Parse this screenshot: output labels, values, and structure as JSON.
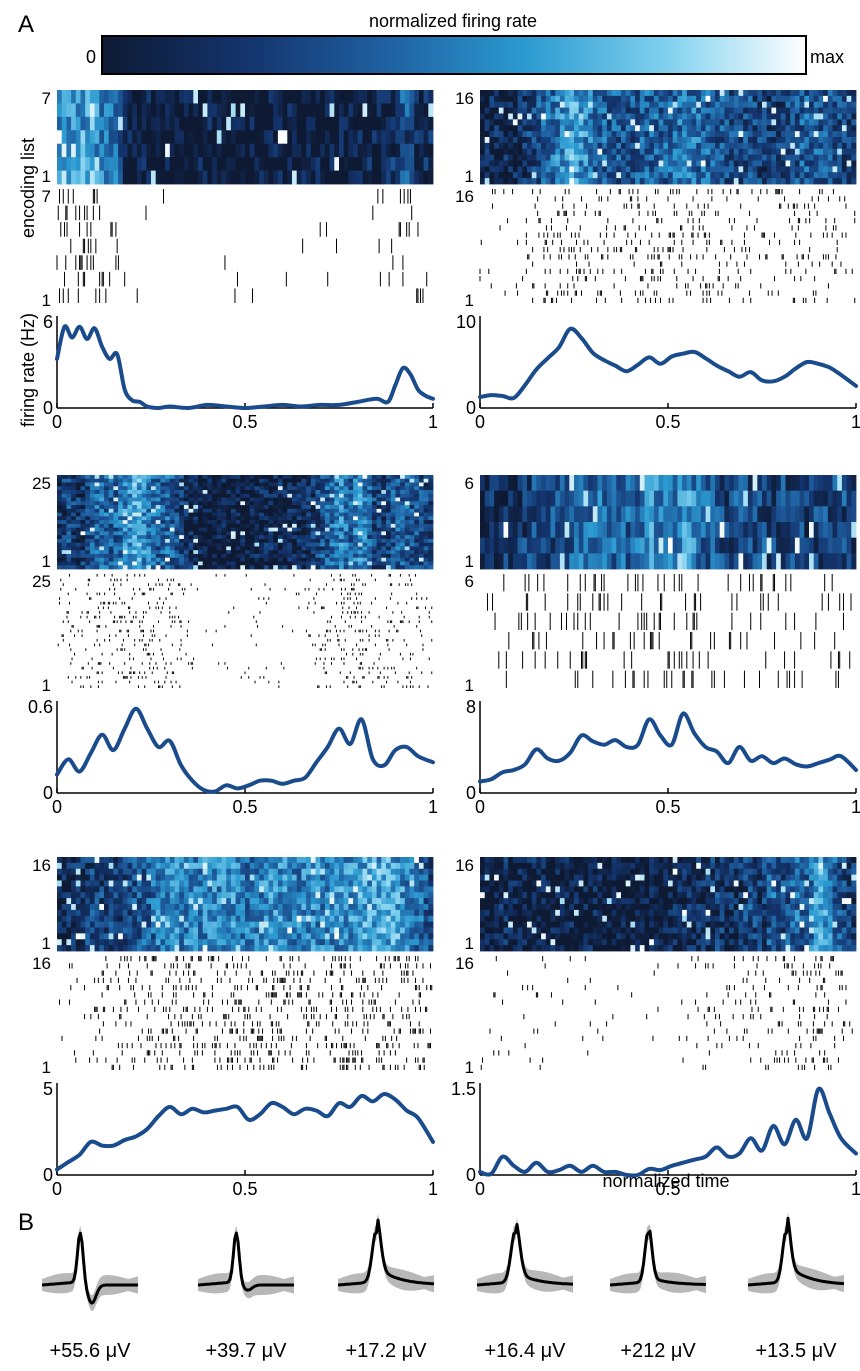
{
  "figure": {
    "panel_a_label": "A",
    "panel_b_label": "B",
    "colorbar": {
      "title": "normalized firing rate",
      "min_label": "0",
      "max_label": "max",
      "colors": [
        "#0e1a33",
        "#13336b",
        "#1f5fa0",
        "#2b9ad0",
        "#7fd0ee",
        "#ffffff"
      ]
    },
    "ylabel_top": "encoding list",
    "ylabel_rate": "firing rate (Hz)",
    "xlabel": "normalized time",
    "line_color": "#1a4b8c"
  },
  "chart_data": [
    {
      "type": "line",
      "title": "",
      "xlabel": "",
      "ylabel": "firing rate (Hz)",
      "lists": 7,
      "list_ticks": [
        "1",
        "7"
      ],
      "xlim": [
        0,
        1
      ],
      "ylim": [
        0,
        6
      ],
      "xticks": [
        "0",
        "0.5",
        "1"
      ],
      "yticks": [
        "0",
        "6"
      ],
      "x": [
        0,
        0.02,
        0.04,
        0.06,
        0.08,
        0.1,
        0.12,
        0.14,
        0.16,
        0.18,
        0.2,
        0.22,
        0.24,
        0.27,
        0.3,
        0.35,
        0.4,
        0.45,
        0.5,
        0.55,
        0.6,
        0.65,
        0.7,
        0.75,
        0.8,
        0.85,
        0.88,
        0.9,
        0.92,
        0.94,
        0.96,
        0.98,
        1
      ],
      "values": [
        3.2,
        5.3,
        4.6,
        5.3,
        4.5,
        5.2,
        4.0,
        3.2,
        3.5,
        1.2,
        0.5,
        0.4,
        0.1,
        0.0,
        0.1,
        0.0,
        0.2,
        0.1,
        0.0,
        0.1,
        0.2,
        0.1,
        0.2,
        0.2,
        0.4,
        0.6,
        0.4,
        1.5,
        2.6,
        2.2,
        1.2,
        0.8,
        0.6
      ]
    },
    {
      "type": "line",
      "title": "",
      "xlabel": "",
      "ylabel": "",
      "lists": 16,
      "list_ticks": [
        "1",
        "16"
      ],
      "xlim": [
        0,
        1
      ],
      "ylim": [
        0,
        10
      ],
      "xticks": [
        "0",
        "0.5",
        "1"
      ],
      "yticks": [
        "0",
        "10"
      ],
      "x": [
        0,
        0.03,
        0.06,
        0.09,
        0.12,
        0.15,
        0.18,
        0.21,
        0.24,
        0.27,
        0.3,
        0.33,
        0.36,
        0.39,
        0.42,
        0.45,
        0.48,
        0.51,
        0.54,
        0.57,
        0.6,
        0.63,
        0.66,
        0.69,
        0.72,
        0.75,
        0.78,
        0.81,
        0.84,
        0.87,
        0.9,
        0.93,
        0.96,
        1
      ],
      "values": [
        1.2,
        1.4,
        1.3,
        1.1,
        2.5,
        4.2,
        5.4,
        6.6,
        8.6,
        7.6,
        6.0,
        5.2,
        4.6,
        4.0,
        4.7,
        5.5,
        4.8,
        5.6,
        5.9,
        6.1,
        5.4,
        4.6,
        4.0,
        3.4,
        3.9,
        3.0,
        2.9,
        3.4,
        4.3,
        5.0,
        4.8,
        4.4,
        3.6,
        2.4
      ]
    },
    {
      "type": "line",
      "title": "",
      "xlabel": "",
      "ylabel": "",
      "lists": 25,
      "list_ticks": [
        "1",
        "25"
      ],
      "xlim": [
        0,
        1
      ],
      "ylim": [
        0,
        0.6
      ],
      "xticks": [
        "0",
        "0.5",
        "1"
      ],
      "yticks": [
        "0",
        "0.6"
      ],
      "x": [
        0,
        0.03,
        0.06,
        0.09,
        0.12,
        0.15,
        0.18,
        0.21,
        0.24,
        0.27,
        0.3,
        0.33,
        0.36,
        0.39,
        0.42,
        0.45,
        0.48,
        0.51,
        0.54,
        0.57,
        0.6,
        0.63,
        0.66,
        0.69,
        0.72,
        0.75,
        0.78,
        0.81,
        0.84,
        0.87,
        0.9,
        0.93,
        0.96,
        1
      ],
      "values": [
        0.12,
        0.22,
        0.14,
        0.26,
        0.38,
        0.28,
        0.42,
        0.55,
        0.42,
        0.3,
        0.34,
        0.18,
        0.08,
        0.02,
        0.01,
        0.05,
        0.03,
        0.05,
        0.08,
        0.08,
        0.06,
        0.08,
        0.1,
        0.2,
        0.3,
        0.42,
        0.32,
        0.48,
        0.22,
        0.18,
        0.28,
        0.3,
        0.24,
        0.2
      ]
    },
    {
      "type": "line",
      "title": "",
      "xlabel": "",
      "ylabel": "",
      "lists": 6,
      "list_ticks": [
        "1",
        "6"
      ],
      "xlim": [
        0,
        1
      ],
      "ylim": [
        0,
        8
      ],
      "xticks": [
        "0",
        "0.5",
        "1"
      ],
      "yticks": [
        "0",
        "8"
      ],
      "x": [
        0,
        0.03,
        0.06,
        0.09,
        0.12,
        0.15,
        0.18,
        0.21,
        0.24,
        0.27,
        0.3,
        0.33,
        0.36,
        0.39,
        0.42,
        0.45,
        0.48,
        0.51,
        0.54,
        0.57,
        0.6,
        0.63,
        0.66,
        0.69,
        0.72,
        0.75,
        0.78,
        0.81,
        0.84,
        0.87,
        0.9,
        0.93,
        0.96,
        1
      ],
      "values": [
        1.0,
        1.2,
        1.8,
        2.0,
        2.5,
        3.8,
        3.0,
        2.8,
        3.5,
        5.0,
        4.5,
        4.2,
        4.6,
        4.0,
        4.2,
        6.4,
        5.0,
        4.2,
        6.9,
        5.2,
        4.0,
        3.6,
        2.6,
        4.0,
        2.8,
        3.2,
        2.6,
        3.0,
        2.5,
        2.3,
        2.6,
        2.9,
        3.2,
        2.0
      ]
    },
    {
      "type": "line",
      "title": "",
      "xlabel": "",
      "ylabel": "",
      "lists": 16,
      "list_ticks": [
        "1",
        "16"
      ],
      "xlim": [
        0,
        1
      ],
      "ylim": [
        0,
        5
      ],
      "xticks": [
        "0",
        "0.5",
        "1"
      ],
      "yticks": [
        "0",
        "5"
      ],
      "x": [
        0,
        0.03,
        0.06,
        0.09,
        0.12,
        0.15,
        0.18,
        0.21,
        0.24,
        0.27,
        0.3,
        0.33,
        0.36,
        0.39,
        0.42,
        0.45,
        0.48,
        0.51,
        0.54,
        0.57,
        0.6,
        0.63,
        0.66,
        0.69,
        0.72,
        0.75,
        0.78,
        0.81,
        0.84,
        0.87,
        0.9,
        0.93,
        0.96,
        1
      ],
      "values": [
        0.3,
        0.7,
        1.1,
        1.8,
        1.6,
        1.6,
        1.9,
        2.1,
        2.5,
        3.2,
        3.7,
        3.3,
        3.6,
        3.4,
        3.5,
        3.6,
        3.7,
        3.0,
        3.3,
        3.9,
        3.7,
        3.3,
        3.6,
        3.5,
        3.2,
        3.9,
        3.7,
        4.3,
        4.0,
        4.4,
        4.1,
        3.5,
        3.1,
        1.8
      ]
    },
    {
      "type": "line",
      "title": "",
      "xlabel": "normalized time",
      "ylabel": "",
      "lists": 16,
      "list_ticks": [
        "1",
        "16"
      ],
      "xlim": [
        0,
        1
      ],
      "ylim": [
        0,
        1.5
      ],
      "xticks": [
        "0",
        "0.5",
        "1"
      ],
      "yticks": [
        "0",
        "1.5"
      ],
      "x": [
        0,
        0.03,
        0.06,
        0.09,
        0.12,
        0.15,
        0.18,
        0.21,
        0.24,
        0.27,
        0.3,
        0.33,
        0.36,
        0.39,
        0.42,
        0.45,
        0.48,
        0.51,
        0.54,
        0.57,
        0.6,
        0.63,
        0.66,
        0.69,
        0.72,
        0.75,
        0.78,
        0.81,
        0.84,
        0.87,
        0.9,
        0.93,
        0.96,
        1
      ],
      "values": [
        0.05,
        0.02,
        0.3,
        0.15,
        0.05,
        0.2,
        0.05,
        0.08,
        0.15,
        0.05,
        0.15,
        0.05,
        0.05,
        0.0,
        0.0,
        0.1,
        0.08,
        0.15,
        0.2,
        0.25,
        0.3,
        0.45,
        0.3,
        0.35,
        0.6,
        0.4,
        0.8,
        0.5,
        0.9,
        0.6,
        1.4,
        1.0,
        0.6,
        0.35
      ]
    }
  ],
  "waveforms": [
    {
      "label": "+55.6 μV",
      "sharp": 1.0,
      "trough": 0.35,
      "tail": 0.0
    },
    {
      "label": "+39.7 μV",
      "sharp": 1.0,
      "trough": 0.1,
      "tail": 0.0
    },
    {
      "label": "+17.2 μV",
      "sharp": 0.6,
      "trough": 0.0,
      "tail": 0.35
    },
    {
      "label": "+16.4 μV",
      "sharp": 0.55,
      "trough": 0.0,
      "tail": 0.25
    },
    {
      "label": "+212 μV",
      "sharp": 0.8,
      "trough": 0.0,
      "tail": 0.15
    },
    {
      "label": "+13.5 μV",
      "sharp": 0.7,
      "trough": 0.0,
      "tail": 0.4
    }
  ]
}
